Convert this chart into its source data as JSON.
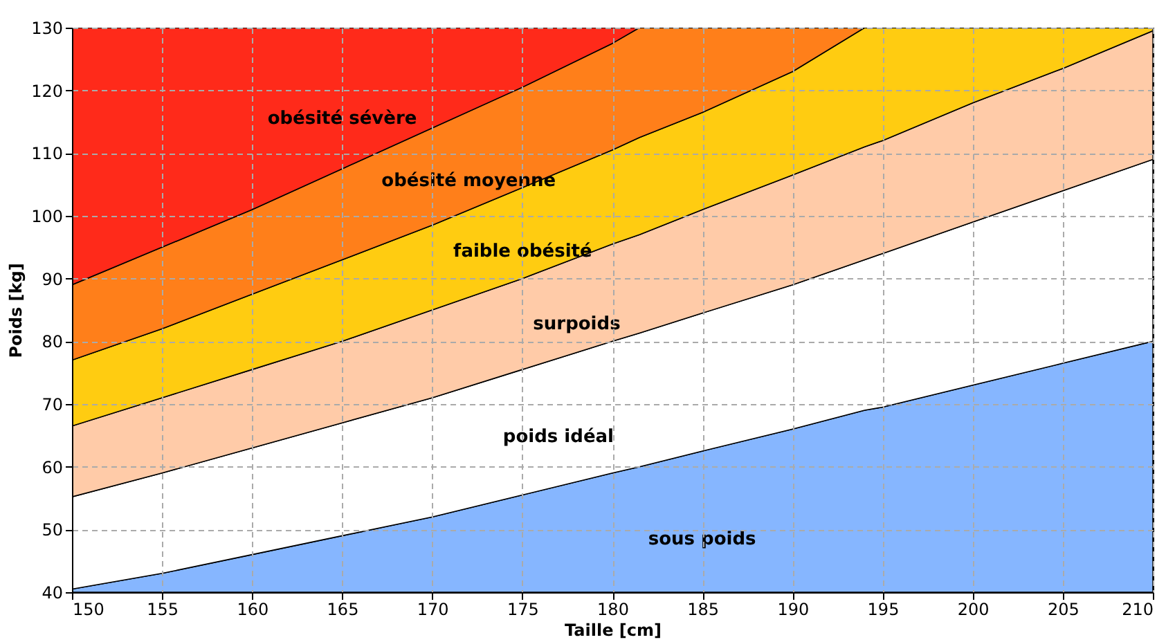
{
  "chart_data": {
    "type": "area",
    "xlabel": "Taille [cm]",
    "ylabel": "Poids [kg]",
    "xlim": [
      150,
      210
    ],
    "ylim": [
      40,
      130
    ],
    "xticks": [
      150,
      155,
      160,
      165,
      170,
      175,
      180,
      185,
      190,
      195,
      200,
      205,
      210
    ],
    "yticks": [
      40,
      50,
      60,
      70,
      80,
      90,
      100,
      110,
      120,
      130
    ],
    "grid": true,
    "x": [
      150,
      155,
      160,
      165,
      170,
      175,
      180,
      181.5,
      185,
      190,
      194,
      195,
      200,
      205,
      210
    ],
    "series": [
      {
        "name": "sous poids",
        "color": "#86b6ff",
        "values": [
          40.5,
          43,
          46,
          49,
          52,
          55.5,
          59,
          60,
          62.5,
          66,
          69,
          69.5,
          73,
          76.5,
          80
        ]
      },
      {
        "name": "poids idéal",
        "color": "#ffffff",
        "values": [
          55.2,
          59,
          63,
          67,
          71,
          75.5,
          80,
          81.3,
          84.5,
          89,
          93,
          94,
          99,
          104,
          109
        ]
      },
      {
        "name": "surpoids",
        "color": "#ffcba8",
        "values": [
          66.5,
          71,
          75.5,
          80,
          85,
          90,
          95.5,
          97,
          101,
          106.5,
          111,
          112,
          118,
          123.5,
          129.5
        ]
      },
      {
        "name": "faible obésité",
        "color": "#ffcc11",
        "values": [
          77,
          82,
          87.5,
          93,
          98.5,
          104.5,
          110.5,
          112.5,
          116.5,
          123,
          130,
          130,
          130,
          130,
          130
        ]
      },
      {
        "name": "obésité moyenne",
        "color": "#ff7f1a",
        "values": [
          89,
          95,
          101,
          107.5,
          114,
          120.5,
          127.5,
          130,
          130,
          130,
          130,
          130,
          130,
          130,
          130
        ]
      },
      {
        "name": "obésité sévère",
        "color": "#ff2a1a",
        "values": [
          130,
          130,
          130,
          130,
          130,
          130,
          130,
          130,
          130,
          130,
          130,
          130,
          130,
          130,
          130
        ]
      }
    ]
  }
}
